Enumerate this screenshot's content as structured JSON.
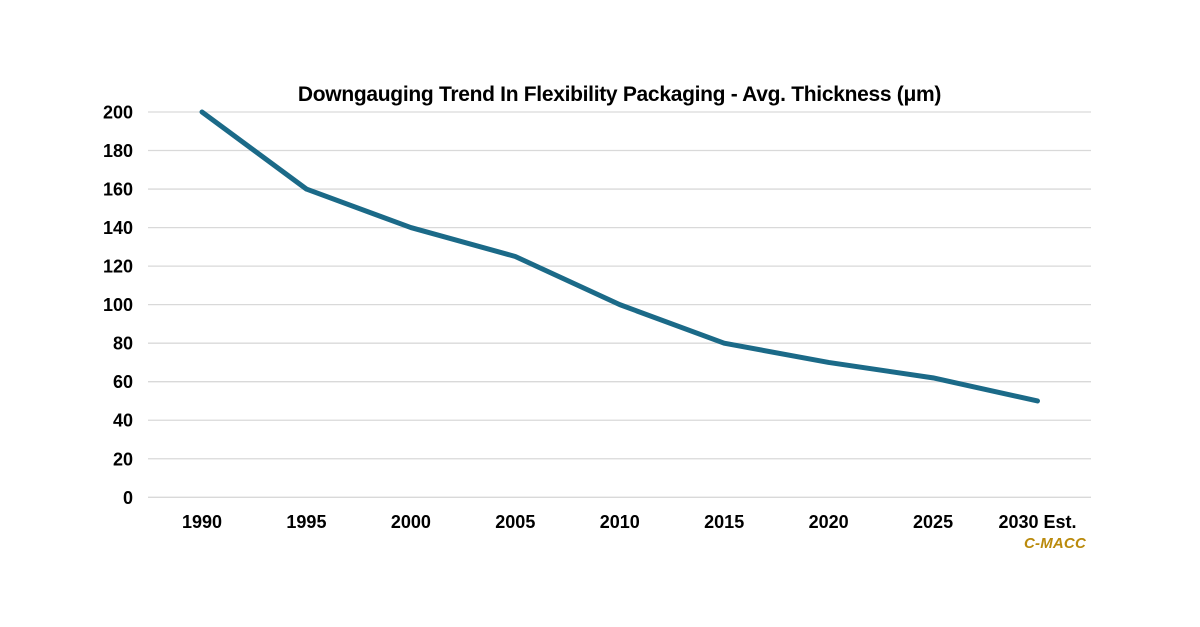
{
  "page": {
    "background_color": "#ffffff"
  },
  "chart_data": {
    "type": "line",
    "title": "Downgauging Trend In Flexibility Packaging - Avg. Thickness (μm)",
    "categories": [
      "1990",
      "1995",
      "2000",
      "2005",
      "2010",
      "2015",
      "2020",
      "2025",
      "2030 Est."
    ],
    "series": [
      {
        "name": "Avg. Thickness (μm)",
        "values": [
          200,
          160,
          140,
          125,
          100,
          80,
          70,
          62,
          50
        ]
      }
    ],
    "xlabel": "",
    "ylabel": "",
    "ylim": [
      0,
      200
    ],
    "yticks": [
      0,
      20,
      40,
      60,
      80,
      100,
      120,
      140,
      160,
      180,
      200
    ],
    "grid": "horizontal",
    "legend_position": "none",
    "line_color": "#1B6A88",
    "grid_color": "#D9D9D9",
    "tick_label_color": "#000000",
    "line_width": 5
  },
  "watermark": {
    "label": "C-MACC",
    "color": "#BA8A0C"
  }
}
